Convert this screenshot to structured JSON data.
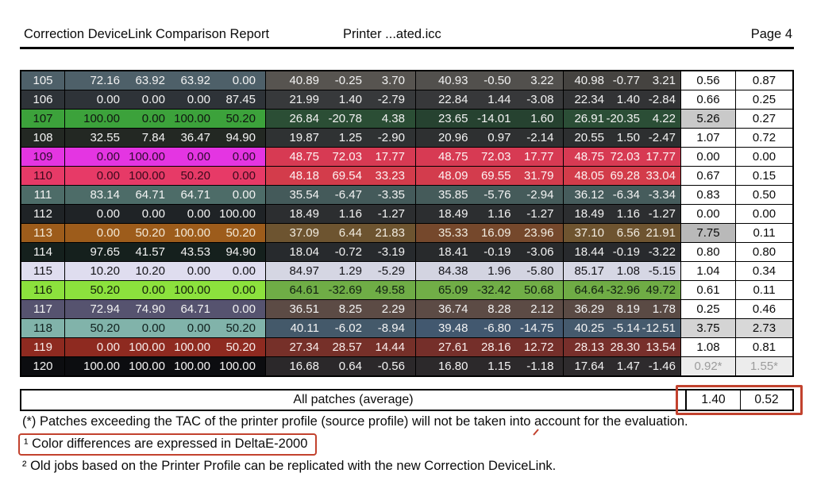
{
  "header": {
    "title": "Correction DeviceLink Comparison Report",
    "document": "Printer ...ated.icc",
    "page": "Page 4"
  },
  "table": {
    "rows": [
      {
        "num": "105",
        "cmyk": [
          "72.16",
          "63.92",
          "63.92",
          "0.00"
        ],
        "cmyk_bg": "#4e6069",
        "cmyk_fg": "#f3f3f3",
        "labs": [
          {
            "v": [
              "40.89",
              "-0.25",
              "3.70"
            ],
            "bg": "#575450",
            "fg": "#f3f3f3"
          },
          {
            "v": [
              "40.93",
              "-0.50",
              "3.22"
            ],
            "bg": "#52504d",
            "fg": "#f3f3f3"
          },
          {
            "v": [
              "40.98",
              "-0.77",
              "3.21"
            ],
            "bg": "#454340",
            "fg": "#f3f3f3"
          }
        ],
        "de": [
          {
            "v": "0.56",
            "bg": "#ffffff",
            "fg": "#0a0a0a"
          },
          {
            "v": "0.87",
            "bg": "#ffffff",
            "fg": "#0a0a0a"
          }
        ]
      },
      {
        "num": "106",
        "cmyk": [
          "0.00",
          "0.00",
          "0.00",
          "87.45"
        ],
        "cmyk_bg": "#2e3338",
        "cmyk_fg": "#f3f3f3",
        "labs": [
          {
            "v": [
              "21.99",
              "1.40",
              "-2.79"
            ],
            "bg": "#37393b",
            "fg": "#f3f3f3"
          },
          {
            "v": [
              "22.84",
              "1.44",
              "-3.08"
            ],
            "bg": "#37383a",
            "fg": "#f3f3f3"
          },
          {
            "v": [
              "22.34",
              "1.40",
              "-2.84"
            ],
            "bg": "#323335",
            "fg": "#f3f3f3"
          }
        ],
        "de": [
          {
            "v": "0.66",
            "bg": "#ffffff",
            "fg": "#0a0a0a"
          },
          {
            "v": "0.25",
            "bg": "#ffffff",
            "fg": "#0a0a0a"
          }
        ]
      },
      {
        "num": "107",
        "cmyk": [
          "100.00",
          "0.00",
          "100.00",
          "50.20"
        ],
        "cmyk_bg": "#3ca23b",
        "cmyk_fg": "#101510",
        "labs": [
          {
            "v": [
              "26.84",
              "-20.78",
              "4.38"
            ],
            "bg": "#2b4e35",
            "fg": "#f3f3f3"
          },
          {
            "v": [
              "23.65",
              "-14.01",
              "1.60"
            ],
            "bg": "#264230",
            "fg": "#f3f3f3"
          },
          {
            "v": [
              "26.91",
              "-20.35",
              "4.22"
            ],
            "bg": "#2b4e36",
            "fg": "#f3f3f3"
          }
        ],
        "de": [
          {
            "v": "5.26",
            "bg": "#c9c9c9",
            "fg": "#0a0a0a"
          },
          {
            "v": "0.27",
            "bg": "#ffffff",
            "fg": "#0a0a0a"
          }
        ]
      },
      {
        "num": "108",
        "cmyk": [
          "32.55",
          "7.84",
          "36.47",
          "94.90"
        ],
        "cmyk_bg": "#232823",
        "cmyk_fg": "#f3f3f3",
        "labs": [
          {
            "v": [
              "19.87",
              "1.25",
              "-2.90"
            ],
            "bg": "#2f3233",
            "fg": "#f3f3f3"
          },
          {
            "v": [
              "20.96",
              "0.97",
              "-2.14"
            ],
            "bg": "#2e3031",
            "fg": "#f3f3f3"
          },
          {
            "v": [
              "20.55",
              "1.50",
              "-2.47"
            ],
            "bg": "#2d2f30",
            "fg": "#f3f3f3"
          }
        ],
        "de": [
          {
            "v": "1.07",
            "bg": "#ffffff",
            "fg": "#0a0a0a"
          },
          {
            "v": "0.72",
            "bg": "#ffffff",
            "fg": "#0a0a0a"
          }
        ]
      },
      {
        "num": "109",
        "cmyk": [
          "0.00",
          "100.00",
          "0.00",
          "0.00"
        ],
        "cmyk_bg": "#e435e2",
        "cmyk_fg": "#2e0a2e",
        "labs": [
          {
            "v": [
              "48.75",
              "72.03",
              "17.77"
            ],
            "bg": "#d73a53",
            "fg": "#fdf2f2"
          },
          {
            "v": [
              "48.75",
              "72.03",
              "17.77"
            ],
            "bg": "#d73a53",
            "fg": "#fdf2f2"
          },
          {
            "v": [
              "48.75",
              "72.03",
              "17.77"
            ],
            "bg": "#d73a53",
            "fg": "#fdf2f2"
          }
        ],
        "de": [
          {
            "v": "0.00",
            "bg": "#ffffff",
            "fg": "#0a0a0a"
          },
          {
            "v": "0.00",
            "bg": "#ffffff",
            "fg": "#0a0a0a"
          }
        ]
      },
      {
        "num": "110",
        "cmyk": [
          "0.00",
          "100.00",
          "50.20",
          "0.00"
        ],
        "cmyk_bg": "#e73a67",
        "cmyk_fg": "#3a0a1c",
        "labs": [
          {
            "v": [
              "48.18",
              "69.54",
              "33.23"
            ],
            "bg": "#d33c4b",
            "fg": "#fdf2f2"
          },
          {
            "v": [
              "48.09",
              "69.55",
              "31.79"
            ],
            "bg": "#d33c4d",
            "fg": "#fdf2f2"
          },
          {
            "v": [
              "48.05",
              "69.28",
              "33.04"
            ],
            "bg": "#d33c4a",
            "fg": "#fdf2f2"
          }
        ],
        "de": [
          {
            "v": "0.67",
            "bg": "#ffffff",
            "fg": "#0a0a0a"
          },
          {
            "v": "0.15",
            "bg": "#ffffff",
            "fg": "#0a0a0a"
          }
        ]
      },
      {
        "num": "111",
        "cmyk": [
          "83.14",
          "64.71",
          "64.71",
          "0.00"
        ],
        "cmyk_bg": "#4d6c68",
        "cmyk_fg": "#f3f3f3",
        "labs": [
          {
            "v": [
              "35.54",
              "-6.47",
              "-3.35"
            ],
            "bg": "#445a5a",
            "fg": "#f3f3f3"
          },
          {
            "v": [
              "35.85",
              "-5.76",
              "-2.94"
            ],
            "bg": "#455b5a",
            "fg": "#f3f3f3"
          },
          {
            "v": [
              "36.12",
              "-6.34",
              "-3.34"
            ],
            "bg": "#465c5c",
            "fg": "#f3f3f3"
          }
        ],
        "de": [
          {
            "v": "0.83",
            "bg": "#ffffff",
            "fg": "#0a0a0a"
          },
          {
            "v": "0.50",
            "bg": "#ffffff",
            "fg": "#0a0a0a"
          }
        ]
      },
      {
        "num": "112",
        "cmyk": [
          "0.00",
          "0.00",
          "0.00",
          "100.00"
        ],
        "cmyk_bg": "#1f2326",
        "cmyk_fg": "#f3f3f3",
        "labs": [
          {
            "v": [
              "18.49",
              "1.16",
              "-1.27"
            ],
            "bg": "#2c2e30",
            "fg": "#f3f3f3"
          },
          {
            "v": [
              "18.49",
              "1.16",
              "-1.27"
            ],
            "bg": "#2c2e30",
            "fg": "#f3f3f3"
          },
          {
            "v": [
              "18.49",
              "1.16",
              "-1.27"
            ],
            "bg": "#2c2e30",
            "fg": "#f3f3f3"
          }
        ],
        "de": [
          {
            "v": "0.00",
            "bg": "#ffffff",
            "fg": "#0a0a0a"
          },
          {
            "v": "0.00",
            "bg": "#ffffff",
            "fg": "#0a0a0a"
          }
        ]
      },
      {
        "num": "113",
        "cmyk": [
          "0.00",
          "50.20",
          "100.00",
          "50.20"
        ],
        "cmyk_bg": "#9d5c1b",
        "cmyk_fg": "#f4e9d6",
        "labs": [
          {
            "v": [
              "37.09",
              "6.44",
              "21.83"
            ],
            "bg": "#6d5430",
            "fg": "#f2ece0"
          },
          {
            "v": [
              "35.33",
              "16.09",
              "23.96"
            ],
            "bg": "#75482c",
            "fg": "#f2ece0"
          },
          {
            "v": [
              "37.10",
              "6.56",
              "21.91"
            ],
            "bg": "#6e5430",
            "fg": "#f2ece0"
          }
        ],
        "de": [
          {
            "v": "7.75",
            "bg": "#b9b9b9",
            "fg": "#0a0a0a"
          },
          {
            "v": "0.11",
            "bg": "#ffffff",
            "fg": "#0a0a0a"
          }
        ]
      },
      {
        "num": "114",
        "cmyk": [
          "97.65",
          "41.57",
          "43.53",
          "94.90"
        ],
        "cmyk_bg": "#15201d",
        "cmyk_fg": "#f3f3f3",
        "labs": [
          {
            "v": [
              "18.04",
              "-0.72",
              "-3.19"
            ],
            "bg": "#272a2d",
            "fg": "#f3f3f3"
          },
          {
            "v": [
              "18.41",
              "-0.19",
              "-3.06"
            ],
            "bg": "#282a2c",
            "fg": "#f3f3f3"
          },
          {
            "v": [
              "18.44",
              "-0.19",
              "-3.22"
            ],
            "bg": "#282a2d",
            "fg": "#f3f3f3"
          }
        ],
        "de": [
          {
            "v": "0.80",
            "bg": "#ffffff",
            "fg": "#0a0a0a"
          },
          {
            "v": "0.80",
            "bg": "#ffffff",
            "fg": "#0a0a0a"
          }
        ]
      },
      {
        "num": "115",
        "cmyk": [
          "10.20",
          "10.20",
          "0.00",
          "0.00"
        ],
        "cmyk_bg": "#dfddef",
        "cmyk_fg": "#15151a",
        "labs": [
          {
            "v": [
              "84.97",
              "1.29",
              "-5.29"
            ],
            "bg": "#d5d6e3",
            "fg": "#15151a"
          },
          {
            "v": [
              "84.38",
              "1.96",
              "-5.80"
            ],
            "bg": "#d3d4e1",
            "fg": "#15151a"
          },
          {
            "v": [
              "85.17",
              "1.08",
              "-5.15"
            ],
            "bg": "#d6d7e4",
            "fg": "#15151a"
          }
        ],
        "de": [
          {
            "v": "1.04",
            "bg": "#ffffff",
            "fg": "#0a0a0a"
          },
          {
            "v": "0.34",
            "bg": "#ffffff",
            "fg": "#0a0a0a"
          }
        ]
      },
      {
        "num": "116",
        "cmyk": [
          "50.20",
          "0.00",
          "100.00",
          "0.00"
        ],
        "cmyk_bg": "#8ce13d",
        "cmyk_fg": "#14200a",
        "labs": [
          {
            "v": [
              "64.61",
              "-32.69",
              "49.58"
            ],
            "bg": "#6fad46",
            "fg": "#122112"
          },
          {
            "v": [
              "65.09",
              "-32.42",
              "50.68"
            ],
            "bg": "#71ae47",
            "fg": "#122112"
          },
          {
            "v": [
              "64.64",
              "-32.96",
              "49.72"
            ],
            "bg": "#6fac45",
            "fg": "#122112"
          }
        ],
        "de": [
          {
            "v": "0.61",
            "bg": "#ffffff",
            "fg": "#0a0a0a"
          },
          {
            "v": "0.11",
            "bg": "#ffffff",
            "fg": "#0a0a0a"
          }
        ]
      },
      {
        "num": "117",
        "cmyk": [
          "72.94",
          "74.90",
          "64.71",
          "0.00"
        ],
        "cmyk_bg": "#56536f",
        "cmyk_fg": "#f3f3f3",
        "labs": [
          {
            "v": [
              "36.51",
              "8.25",
              "2.29"
            ],
            "bg": "#5c4b45",
            "fg": "#f3f3f3"
          },
          {
            "v": [
              "36.74",
              "8.28",
              "2.12"
            ],
            "bg": "#5c4b45",
            "fg": "#f3f3f3"
          },
          {
            "v": [
              "36.29",
              "8.19",
              "1.78"
            ],
            "bg": "#5a4a44",
            "fg": "#f3f3f3"
          }
        ],
        "de": [
          {
            "v": "0.25",
            "bg": "#ffffff",
            "fg": "#0a0a0a"
          },
          {
            "v": "0.46",
            "bg": "#ffffff",
            "fg": "#0a0a0a"
          }
        ]
      },
      {
        "num": "118",
        "cmyk": [
          "50.20",
          "0.00",
          "0.00",
          "50.20"
        ],
        "cmyk_bg": "#81b3aa",
        "cmyk_fg": "#10201e",
        "labs": [
          {
            "v": [
              "40.11",
              "-6.02",
              "-8.94"
            ],
            "bg": "#44596a",
            "fg": "#f3f3f3"
          },
          {
            "v": [
              "39.48",
              "-6.80",
              "-14.75"
            ],
            "bg": "#42586f",
            "fg": "#f3f3f3"
          },
          {
            "v": [
              "40.25",
              "-5.14",
              "-12.51"
            ],
            "bg": "#455a6d",
            "fg": "#f3f3f3"
          }
        ],
        "de": [
          {
            "v": "3.75",
            "bg": "#d4d4d4",
            "fg": "#0a0a0a"
          },
          {
            "v": "2.73",
            "bg": "#d8d8d8",
            "fg": "#0a0a0a"
          }
        ]
      },
      {
        "num": "119",
        "cmyk": [
          "0.00",
          "100.00",
          "100.00",
          "50.20"
        ],
        "cmyk_bg": "#8e2a20",
        "cmyk_fg": "#f8ecea",
        "labs": [
          {
            "v": [
              "27.34",
              "28.57",
              "14.44"
            ],
            "bg": "#763029",
            "fg": "#f8ecea"
          },
          {
            "v": [
              "27.61",
              "28.16",
              "12.72"
            ],
            "bg": "#752f2a",
            "fg": "#f8ecea"
          },
          {
            "v": [
              "28.13",
              "28.30",
              "13.54"
            ],
            "bg": "#772f2b",
            "fg": "#f8ecea"
          }
        ],
        "de": [
          {
            "v": "1.08",
            "bg": "#ffffff",
            "fg": "#0a0a0a"
          },
          {
            "v": "0.81",
            "bg": "#ffffff",
            "fg": "#0a0a0a"
          }
        ]
      },
      {
        "num": "120",
        "cmyk": [
          "100.00",
          "100.00",
          "100.00",
          "100.00"
        ],
        "cmyk_bg": "#0c0d10",
        "cmyk_fg": "#f3f3f3",
        "labs": [
          {
            "v": [
              "16.68",
              "0.64",
              "-0.56"
            ],
            "bg": "#2b282a",
            "fg": "#f3f3f3"
          },
          {
            "v": [
              "16.80",
              "1.15",
              "-1.18"
            ],
            "bg": "#2c292b",
            "fg": "#f3f3f3"
          },
          {
            "v": [
              "17.64",
              "1.47",
              "-1.46"
            ],
            "bg": "#2e2b2d",
            "fg": "#f3f3f3"
          }
        ],
        "de": [
          {
            "v": "0.92*",
            "bg": "#ececec",
            "fg": "#9c9c9c"
          },
          {
            "v": "1.55*",
            "bg": "#ececec",
            "fg": "#9c9c9c"
          }
        ]
      }
    ],
    "average": {
      "label": "All patches (average)",
      "de1": "1.40",
      "de2": "0.52"
    }
  },
  "footnotes": {
    "tac_note": "(*) Patches exceeding the TAC of the printer profile (source profile) will not be taken into account for the evaluation.",
    "delta_e_note": "¹ Color differences are expressed in DeltaE-2000",
    "old_jobs_note": "² Old jobs based on the Printer Profile can be replicated with the new Correction DeviceLink."
  },
  "annotation_color": "#c2422e"
}
